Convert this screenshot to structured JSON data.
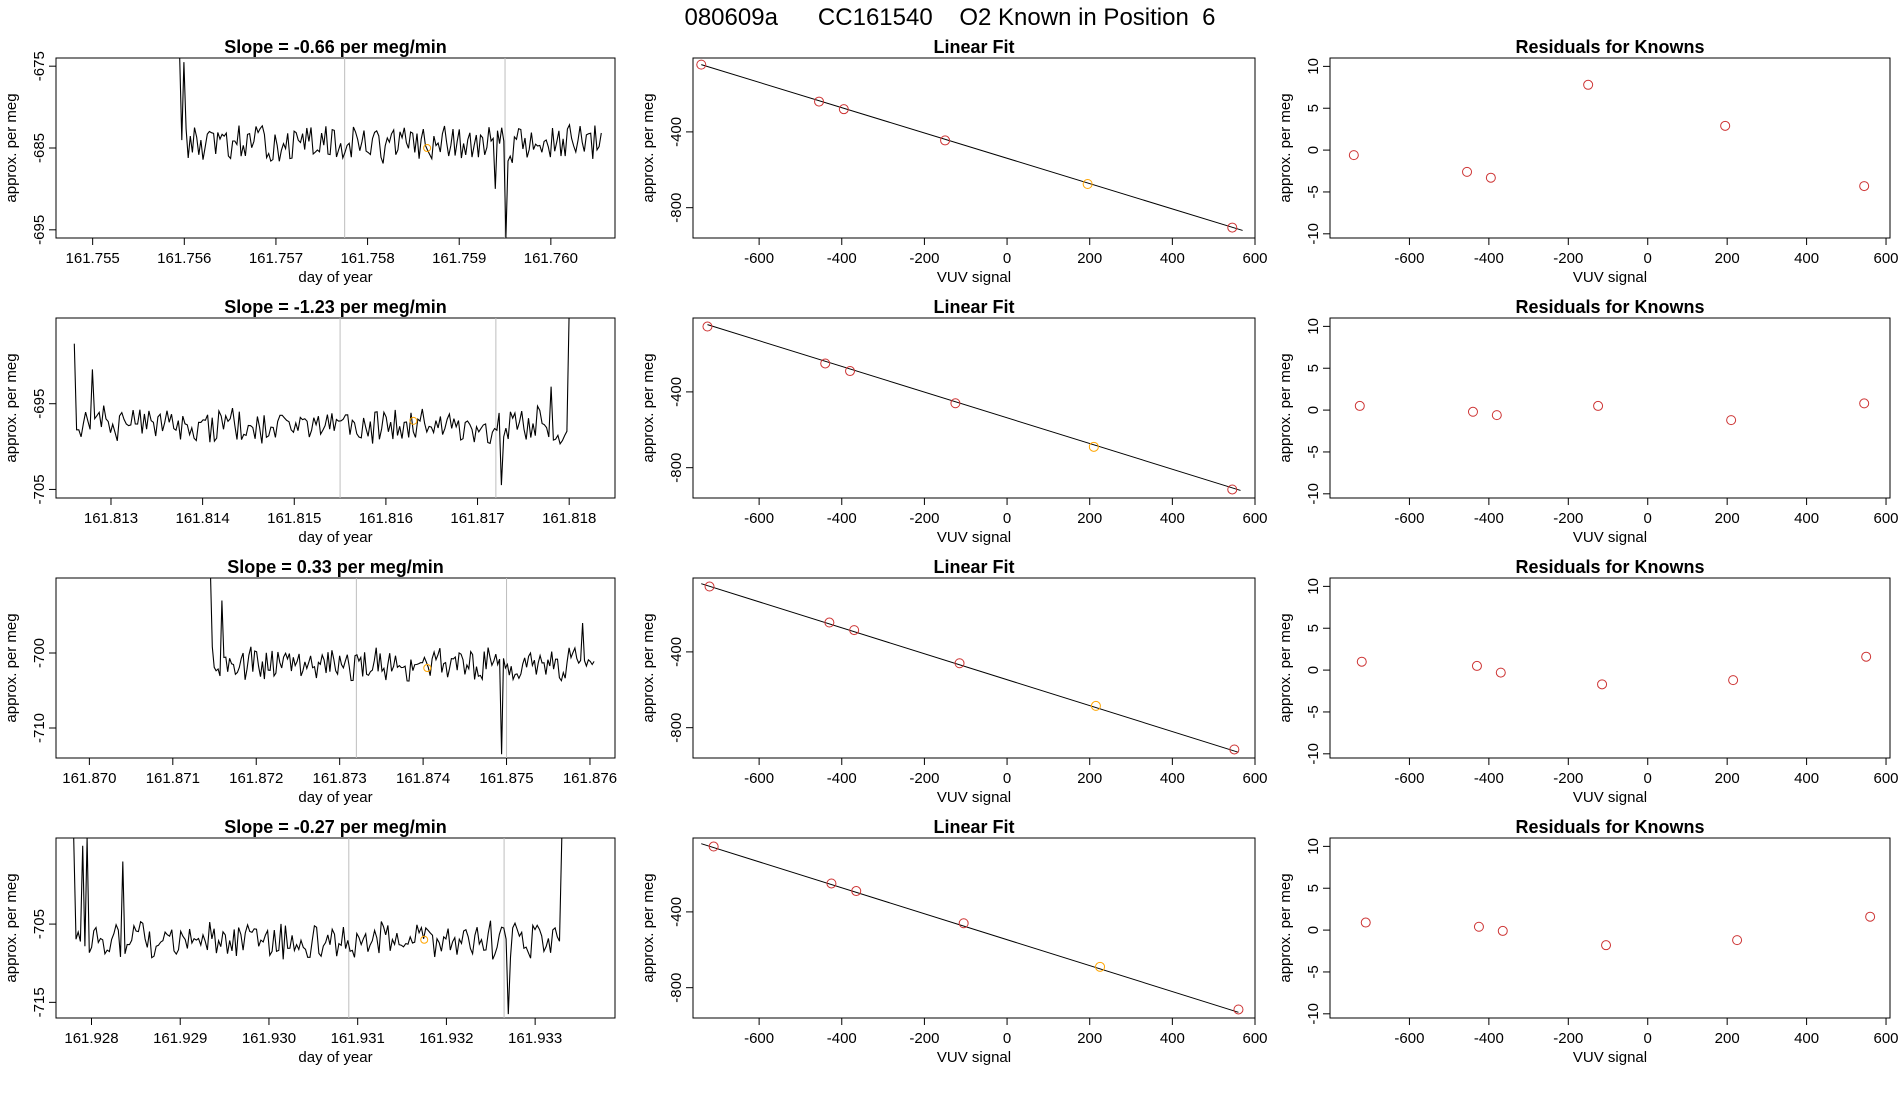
{
  "header": {
    "title": "080609a      CC161540    O2 Known in Position  6"
  },
  "colors": {
    "line": "#000000",
    "marker": "#cd3333",
    "known": "#ffa500",
    "vline": "#bebebe"
  },
  "chart_data": [
    {
      "type": "line",
      "title": "Slope =  -0.66  per meg/min",
      "xlabel": "day of year",
      "ylabel": "approx. per meg",
      "xlim": [
        161.7546,
        161.7607
      ],
      "ylim": [
        -696,
        -674
      ],
      "xticks": [
        "161.755",
        "161.756",
        "161.757",
        "161.758",
        "161.759",
        "161.760"
      ],
      "yticks": [
        "-675",
        "-685",
        "-695"
      ],
      "x_start": 161.75595,
      "x_end": 161.76055,
      "points": 200,
      "baseline": -684.5,
      "noise": 2.0,
      "vlines": [
        161.75775,
        161.7595
      ],
      "known_marker": [
        161.75865,
        -685.0
      ],
      "spikes": [
        [
          161.75595,
          -674.0
        ],
        [
          161.756,
          -674.5
        ],
        [
          161.7595,
          -696.0
        ],
        [
          161.7594,
          -690.0
        ]
      ]
    },
    {
      "type": "scatter",
      "title": "Linear Fit",
      "xlabel": "VUV signal",
      "ylabel": "approx. per meg",
      "xlim": [
        -760,
        600
      ],
      "ylim": [
        -960,
        -10
      ],
      "xticks": [
        "-600",
        "-400",
        "-200",
        "0",
        "200",
        "400",
        "600"
      ],
      "yticks": [
        "-400",
        "-800"
      ],
      "fit_line": [
        [
          -740,
          -45
        ],
        [
          570,
          -920
        ]
      ],
      "points": [
        [
          -740,
          -45
        ],
        [
          -455,
          -240
        ],
        [
          -395,
          -280
        ],
        [
          -150,
          -445
        ],
        [
          195,
          -675
        ],
        [
          545,
          -905
        ]
      ],
      "known_index": 4
    },
    {
      "type": "scatter",
      "title": "Residuals for Knowns",
      "xlabel": "VUV signal",
      "ylabel": "approx. per meg",
      "xlim": [
        -800,
        610
      ],
      "ylim": [
        -10.5,
        11
      ],
      "xticks": [
        "-600",
        "-400",
        "-200",
        "0",
        "200",
        "400",
        "600"
      ],
      "yticks": [
        "10",
        "5",
        "0",
        "-5",
        "-10"
      ],
      "points": [
        [
          -740,
          -0.6
        ],
        [
          -455,
          -2.6
        ],
        [
          -395,
          -3.3
        ],
        [
          -150,
          7.8
        ],
        [
          195,
          2.9
        ],
        [
          545,
          -4.3
        ]
      ]
    },
    {
      "type": "line",
      "title": "Slope =  -1.23  per meg/min",
      "xlabel": "day of year",
      "ylabel": "approx. per meg",
      "xlim": [
        161.8124,
        161.8185
      ],
      "ylim": [
        -706,
        -685
      ],
      "xticks": [
        "161.813",
        "161.814",
        "161.815",
        "161.816",
        "161.817",
        "161.818"
      ],
      "yticks": [
        "-695",
        "-705"
      ],
      "x_start": 161.8126,
      "x_end": 161.818,
      "points": 220,
      "baseline": -697.5,
      "noise": 1.8,
      "vlines": [
        161.8155,
        161.8172
      ],
      "known_marker": [
        161.8163,
        -697.0
      ],
      "spikes": [
        [
          161.8126,
          -688.0
        ],
        [
          161.8128,
          -691.0
        ],
        [
          161.81725,
          -704.5
        ],
        [
          161.8178,
          -693.0
        ],
        [
          161.818,
          -684.0
        ]
      ]
    },
    {
      "type": "scatter",
      "title": "Linear Fit",
      "xlabel": "VUV signal",
      "ylabel": "approx. per meg",
      "xlim": [
        -760,
        600
      ],
      "ylim": [
        -960,
        -10
      ],
      "xticks": [
        "-600",
        "-400",
        "-200",
        "0",
        "200",
        "400",
        "600"
      ],
      "yticks": [
        "-400",
        "-800"
      ],
      "fit_line": [
        [
          -725,
          -45
        ],
        [
          565,
          -920
        ]
      ],
      "points": [
        [
          -725,
          -55
        ],
        [
          -440,
          -250
        ],
        [
          -380,
          -290
        ],
        [
          -125,
          -460
        ],
        [
          210,
          -690
        ],
        [
          545,
          -915
        ]
      ],
      "known_index": 4
    },
    {
      "type": "scatter",
      "title": "Residuals for Knowns",
      "xlabel": "VUV signal",
      "ylabel": "approx. per meg",
      "xlim": [
        -800,
        610
      ],
      "ylim": [
        -10.5,
        11
      ],
      "xticks": [
        "-600",
        "-400",
        "-200",
        "0",
        "200",
        "400",
        "600"
      ],
      "yticks": [
        "10",
        "5",
        "0",
        "-5",
        "-10"
      ],
      "points": [
        [
          -725,
          0.5
        ],
        [
          -440,
          -0.2
        ],
        [
          -380,
          -0.6
        ],
        [
          -125,
          0.5
        ],
        [
          210,
          -1.2
        ],
        [
          545,
          0.8
        ]
      ]
    },
    {
      "type": "line",
      "title": "Slope =  0.33  per meg/min",
      "xlabel": "day of year",
      "ylabel": "approx. per meg",
      "xlim": [
        161.8696,
        161.8763
      ],
      "ylim": [
        -714,
        -690
      ],
      "xticks": [
        "161.870",
        "161.871",
        "161.872",
        "161.873",
        "161.874",
        "161.875",
        "161.876"
      ],
      "yticks": [
        "-700",
        "-710"
      ],
      "x_start": 161.87145,
      "x_end": 161.87605,
      "points": 200,
      "baseline": -701.5,
      "noise": 2.0,
      "vlines": [
        161.8732,
        161.875
      ],
      "known_marker": [
        161.87405,
        -702.0
      ],
      "spikes": [
        [
          161.87145,
          -689.0
        ],
        [
          161.8716,
          -693.0
        ],
        [
          161.87495,
          -713.5
        ],
        [
          161.8759,
          -696.0
        ]
      ]
    },
    {
      "type": "scatter",
      "title": "Linear Fit",
      "xlabel": "VUV signal",
      "ylabel": "approx. per meg",
      "xlim": [
        -760,
        600
      ],
      "ylim": [
        -960,
        -10
      ],
      "xticks": [
        "-600",
        "-400",
        "-200",
        "0",
        "200",
        "400",
        "600"
      ],
      "yticks": [
        "-400",
        "-800"
      ],
      "fit_line": [
        [
          -740,
          -40
        ],
        [
          560,
          -930
        ]
      ],
      "points": [
        [
          -720,
          -55
        ],
        [
          -430,
          -245
        ],
        [
          -370,
          -285
        ],
        [
          -115,
          -460
        ],
        [
          215,
          -685
        ],
        [
          550,
          -915
        ]
      ],
      "known_index": 4
    },
    {
      "type": "scatter",
      "title": "Residuals for Knowns",
      "xlabel": "VUV signal",
      "ylabel": "approx. per meg",
      "xlim": [
        -800,
        610
      ],
      "ylim": [
        -10.5,
        11
      ],
      "xticks": [
        "-600",
        "-400",
        "-200",
        "0",
        "200",
        "400",
        "600"
      ],
      "yticks": [
        "10",
        "5",
        "0",
        "-5",
        "-10"
      ],
      "points": [
        [
          -720,
          1.0
        ],
        [
          -430,
          0.5
        ],
        [
          -370,
          -0.3
        ],
        [
          -115,
          -1.7
        ],
        [
          215,
          -1.2
        ],
        [
          550,
          1.6
        ]
      ]
    },
    {
      "type": "line",
      "title": "Slope =  -0.27  per meg/min",
      "xlabel": "day of year",
      "ylabel": "approx. per meg",
      "xlim": [
        161.9276,
        161.9339
      ],
      "ylim": [
        -717,
        -694
      ],
      "xticks": [
        "161.928",
        "161.929",
        "161.930",
        "161.931",
        "161.932",
        "161.933"
      ],
      "yticks": [
        "-705",
        "-715"
      ],
      "x_start": 161.9278,
      "x_end": 161.9333,
      "points": 220,
      "baseline": -707.0,
      "noise": 2.0,
      "vlines": [
        161.9309,
        161.93265
      ],
      "known_marker": [
        161.93175,
        -707.0
      ],
      "spikes": [
        [
          161.9278,
          -694.0
        ],
        [
          161.9279,
          -695.0
        ],
        [
          161.92795,
          -694.0
        ],
        [
          161.92835,
          -697.0
        ],
        [
          161.9327,
          -716.5
        ],
        [
          161.9333,
          -694.0
        ]
      ]
    },
    {
      "type": "scatter",
      "title": "Linear Fit",
      "xlabel": "VUV signal",
      "ylabel": "approx. per meg",
      "xlim": [
        -760,
        600
      ],
      "ylim": [
        -960,
        -10
      ],
      "xticks": [
        "-600",
        "-400",
        "-200",
        "0",
        "200",
        "400",
        "600"
      ],
      "yticks": [
        "-400",
        "-800"
      ],
      "fit_line": [
        [
          -740,
          -40
        ],
        [
          560,
          -930
        ]
      ],
      "points": [
        [
          -710,
          -55
        ],
        [
          -425,
          -250
        ],
        [
          -365,
          -290
        ],
        [
          -105,
          -460
        ],
        [
          225,
          -690
        ],
        [
          560,
          -915
        ]
      ],
      "known_index": 4
    },
    {
      "type": "scatter",
      "title": "Residuals for Knowns",
      "xlabel": "VUV signal",
      "ylabel": "approx. per meg",
      "xlim": [
        -800,
        610
      ],
      "ylim": [
        -10.5,
        11
      ],
      "xticks": [
        "-600",
        "-400",
        "-200",
        "0",
        "200",
        "400",
        "600"
      ],
      "yticks": [
        "10",
        "5",
        "0",
        "-5",
        "-10"
      ],
      "points": [
        [
          -710,
          0.9
        ],
        [
          -425,
          0.4
        ],
        [
          -365,
          -0.1
        ],
        [
          -105,
          -1.8
        ],
        [
          225,
          -1.2
        ],
        [
          560,
          1.6
        ]
      ]
    }
  ]
}
